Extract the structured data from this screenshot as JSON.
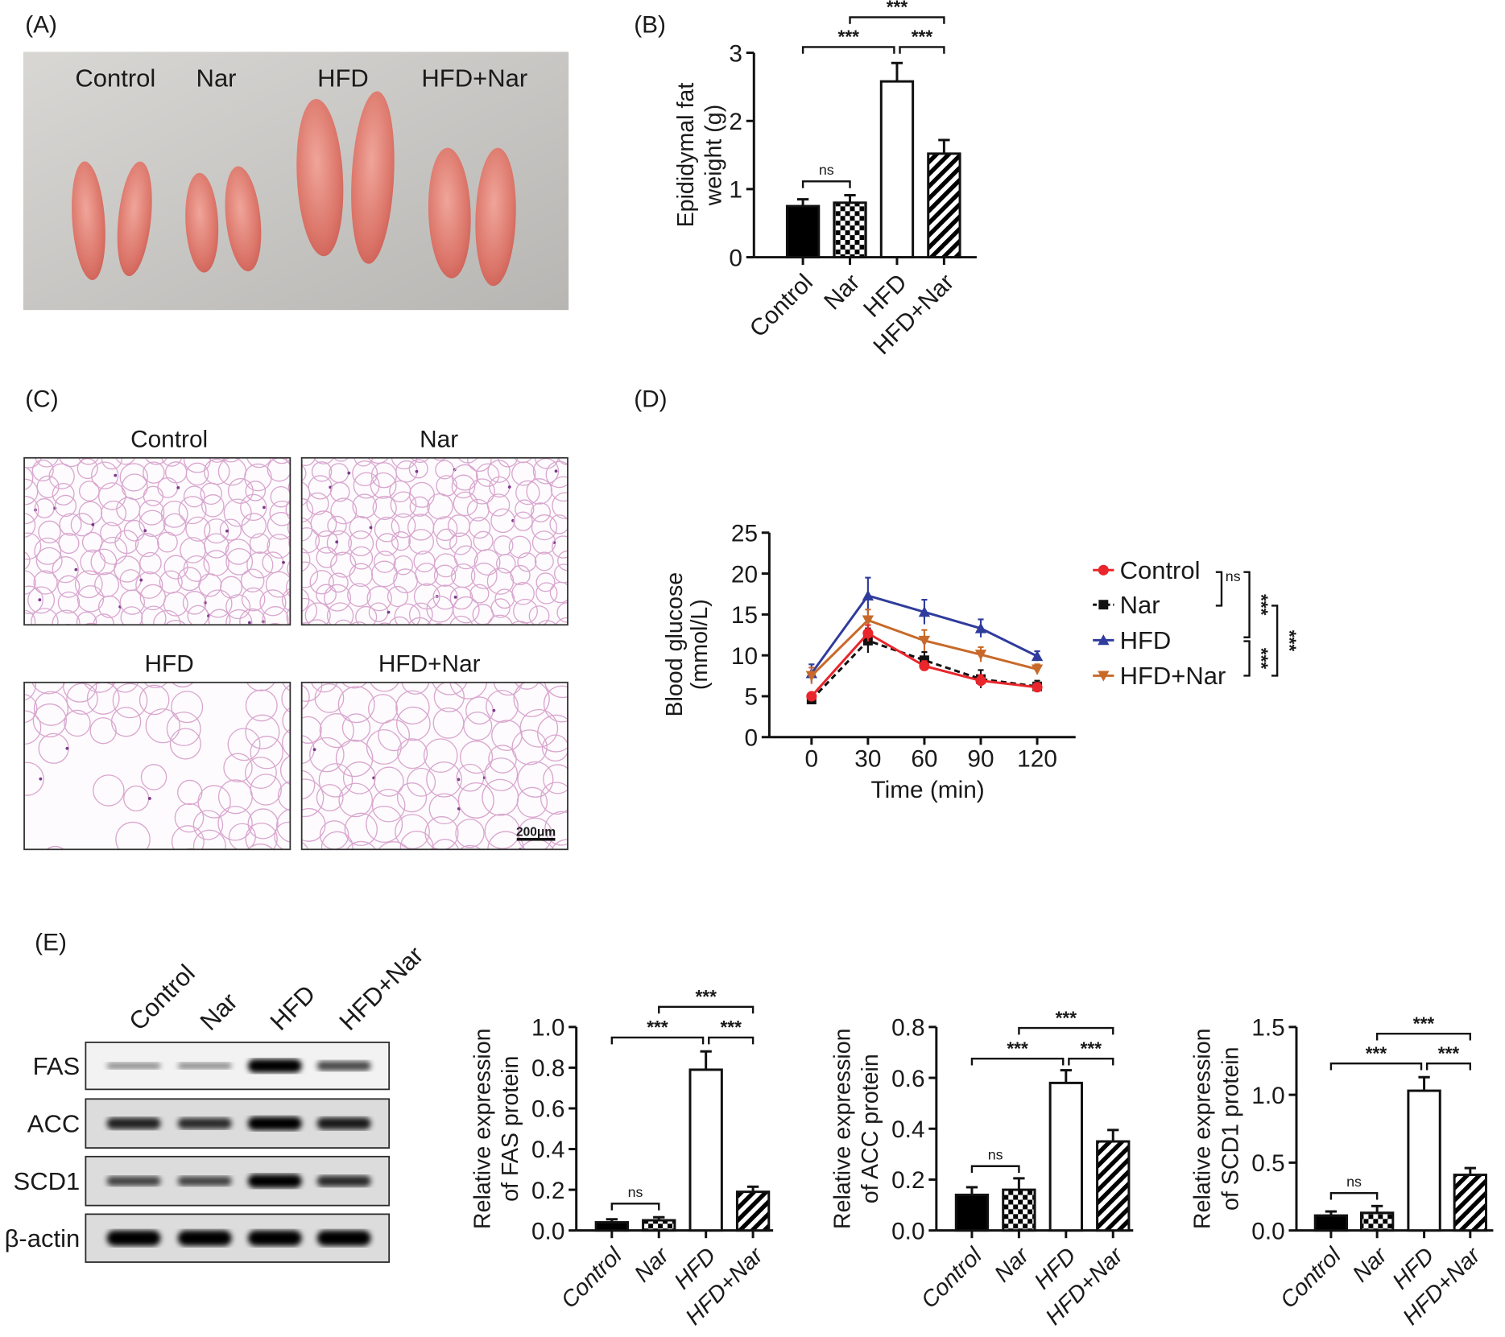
{
  "panels": {
    "A": "(A)",
    "B": "(B)",
    "C": "(C)",
    "D": "(D)",
    "E": "(E)"
  },
  "photo": {
    "labels": [
      "Control",
      "Nar",
      "HFD",
      "HFD+Nar"
    ]
  },
  "histology": {
    "titles": [
      "Control",
      "Nar",
      "HFD",
      "HFD+Nar"
    ],
    "scale_bar": "200μm"
  },
  "blot": {
    "lanes": [
      "Control",
      "Nar",
      "HFD",
      "HFD+Nar"
    ],
    "rows": [
      {
        "label": "FAS",
        "band_intensity": [
          0.25,
          0.25,
          1.0,
          0.6
        ]
      },
      {
        "label": "ACC",
        "band_intensity": [
          0.8,
          0.75,
          1.0,
          0.85
        ]
      },
      {
        "label": "SCD1",
        "band_intensity": [
          0.6,
          0.6,
          1.0,
          0.75
        ]
      },
      {
        "label": "β-actin",
        "band_intensity": [
          1.0,
          1.0,
          1.0,
          1.0
        ]
      }
    ]
  },
  "chart_data": [
    {
      "type": "bar",
      "panel": "B",
      "ylabel": [
        "Epididymal fat",
        "weight (g)"
      ],
      "categories": [
        "Control",
        "Nar",
        "HFD",
        "HFD+Nar"
      ],
      "values": [
        0.75,
        0.8,
        2.58,
        1.52
      ],
      "errors": [
        0.1,
        0.11,
        0.27,
        0.2
      ],
      "ylim": [
        0,
        3
      ],
      "yticks": [
        "0",
        "1",
        "2",
        "3"
      ],
      "comparisons": [
        {
          "groups": [
            0,
            1
          ],
          "label": "ns"
        },
        {
          "groups": [
            0,
            2
          ],
          "label": "***"
        },
        {
          "groups": [
            2,
            3
          ],
          "label": "***"
        },
        {
          "groups": [
            1,
            3
          ],
          "label": "***"
        }
      ]
    },
    {
      "type": "line",
      "panel": "D",
      "xlabel": "Time (min)",
      "ylabel": [
        "Blood glucose",
        "(mmol/L)"
      ],
      "x": [
        0,
        30,
        60,
        90,
        120
      ],
      "xticks": [
        "0",
        "30",
        "60",
        "90",
        "120"
      ],
      "ylim": [
        0,
        25
      ],
      "yticks": [
        "0",
        "5",
        "10",
        "15",
        "20",
        "25"
      ],
      "legend": "right",
      "series": [
        {
          "name": "Control",
          "color": "#e8262b",
          "marker": "circle",
          "values": [
            5.0,
            12.7,
            8.7,
            6.9,
            6.1
          ],
          "errors": [
            0.4,
            1.0,
            0.6,
            0.7,
            0.5
          ]
        },
        {
          "name": "Nar",
          "color": "#111111",
          "marker": "square",
          "values": [
            4.6,
            11.8,
            9.4,
            7.1,
            6.2
          ],
          "errors": [
            0.4,
            1.5,
            1.0,
            1.1,
            0.7
          ]
        },
        {
          "name": "HFD",
          "color": "#2f3c9c",
          "marker": "triangle-up",
          "values": [
            7.8,
            17.3,
            15.3,
            13.3,
            9.9
          ],
          "errors": [
            1.1,
            2.2,
            1.5,
            1.1,
            0.6
          ]
        },
        {
          "name": "HFD+Nar",
          "color": "#c8692a",
          "marker": "triangle-down",
          "values": [
            7.5,
            14.3,
            11.8,
            10.1,
            8.3
          ],
          "errors": [
            1.0,
            1.3,
            1.3,
            0.9,
            0.6
          ]
        }
      ],
      "comparisons": [
        {
          "groups": [
            0,
            1
          ],
          "label": "ns"
        },
        {
          "groups": [
            0,
            2
          ],
          "label": "***"
        },
        {
          "groups": [
            2,
            3
          ],
          "label": "***"
        },
        {
          "groups": [
            1,
            3
          ],
          "label": "***"
        }
      ]
    },
    {
      "type": "bar",
      "panel": "E",
      "ylabel": [
        "Relative expression",
        "of FAS protein"
      ],
      "categories": [
        "Control",
        "Nar",
        "HFD",
        "HFD+Nar"
      ],
      "values": [
        0.04,
        0.05,
        0.79,
        0.19
      ],
      "errors": [
        0.015,
        0.015,
        0.09,
        0.025
      ],
      "ylim": [
        0,
        1.0
      ],
      "yticks": [
        "0.0",
        "0.2",
        "0.4",
        "0.6",
        "0.8",
        "1.0"
      ],
      "comparisons": [
        {
          "groups": [
            0,
            1
          ],
          "label": "ns"
        },
        {
          "groups": [
            0,
            2
          ],
          "label": "***"
        },
        {
          "groups": [
            2,
            3
          ],
          "label": "***"
        },
        {
          "groups": [
            1,
            3
          ],
          "label": "***"
        }
      ]
    },
    {
      "type": "bar",
      "panel": "E",
      "ylabel": [
        "Relative expression",
        "of ACC protein"
      ],
      "categories": [
        "Control",
        "Nar",
        "HFD",
        "HFD+Nar"
      ],
      "values": [
        0.14,
        0.16,
        0.58,
        0.35
      ],
      "errors": [
        0.03,
        0.045,
        0.05,
        0.045
      ],
      "ylim": [
        0,
        0.8
      ],
      "yticks": [
        "0.0",
        "0.2",
        "0.4",
        "0.6",
        "0.8"
      ],
      "comparisons": [
        {
          "groups": [
            0,
            1
          ],
          "label": "ns"
        },
        {
          "groups": [
            0,
            2
          ],
          "label": "***"
        },
        {
          "groups": [
            2,
            3
          ],
          "label": "***"
        },
        {
          "groups": [
            1,
            3
          ],
          "label": "***"
        }
      ]
    },
    {
      "type": "bar",
      "panel": "E",
      "ylabel": [
        "Relative expression",
        "of SCD1 protein"
      ],
      "categories": [
        "Control",
        "Nar",
        "HFD",
        "HFD+Nar"
      ],
      "values": [
        0.11,
        0.13,
        1.03,
        0.41
      ],
      "errors": [
        0.03,
        0.05,
        0.1,
        0.05
      ],
      "ylim": [
        0,
        1.5
      ],
      "yticks": [
        "0.0",
        "0.5",
        "1.0",
        "1.5"
      ],
      "comparisons": [
        {
          "groups": [
            0,
            1
          ],
          "label": "ns"
        },
        {
          "groups": [
            0,
            2
          ],
          "label": "***"
        },
        {
          "groups": [
            2,
            3
          ],
          "label": "***"
        },
        {
          "groups": [
            1,
            3
          ],
          "label": "***"
        }
      ]
    }
  ]
}
